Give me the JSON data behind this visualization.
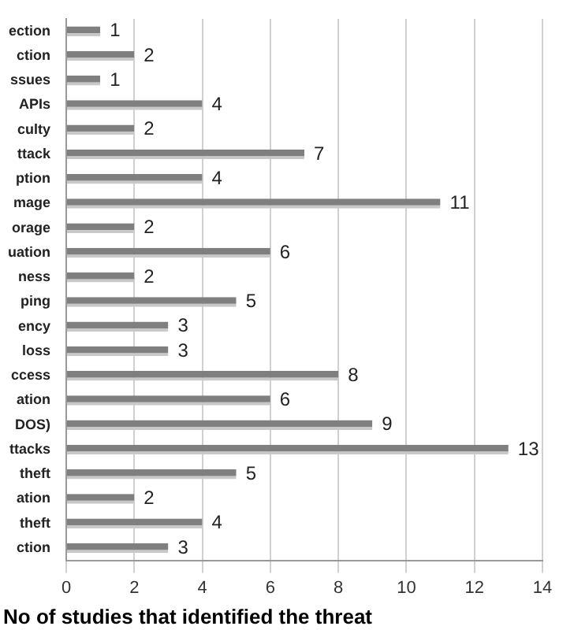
{
  "chart_data": {
    "type": "bar",
    "orientation": "horizontal",
    "categories": [
      "ection",
      "ction",
      "ssues",
      "APIs",
      "culty",
      "ttack",
      "ption",
      "mage",
      "orage",
      "uation",
      "ness",
      "ping",
      "ency",
      "loss",
      "ccess",
      "ation",
      "DOS)",
      "ttacks",
      "theft",
      "ation",
      "theft",
      "ction"
    ],
    "values": [
      1,
      2,
      1,
      4,
      2,
      7,
      4,
      11,
      2,
      6,
      2,
      5,
      3,
      3,
      8,
      6,
      9,
      13,
      5,
      2,
      4,
      3
    ],
    "color": "#7f7f7f",
    "xlim": [
      0,
      14
    ],
    "xticks": [
      0,
      2,
      4,
      6,
      8,
      10,
      12,
      14
    ],
    "grid": "x",
    "data_labels": true,
    "legend": false,
    "xlabel": "No of studies that identified the threat"
  }
}
